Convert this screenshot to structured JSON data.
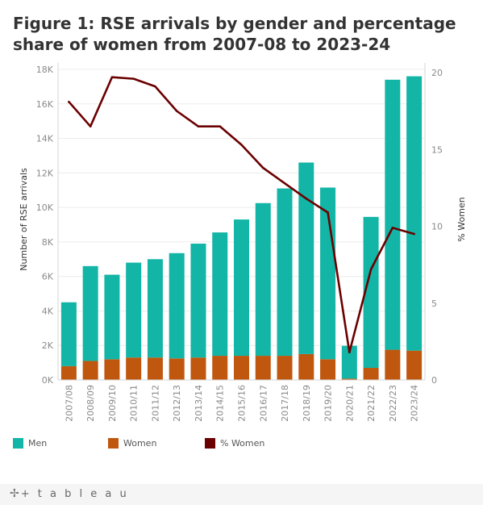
{
  "title": "Figure 1: RSE arrivals by gender and percentage share of women from 2007-08 to 2023-24",
  "legend": {
    "men": "Men",
    "women": "Women",
    "pct_women": "% Women"
  },
  "footer": {
    "logo_mark": "✢",
    "logo_text": "+ t a b l e a u"
  },
  "colors": {
    "men": "#12b5a6",
    "women": "#c0570f",
    "pct_women": "#6b0000",
    "gridline": "#ececec",
    "footer_bg": "#f5f5f5"
  },
  "chart_data": {
    "type": "bar",
    "stacked": true,
    "categories": [
      "2007/08",
      "2008/09",
      "2009/10",
      "2010/11",
      "2011/12",
      "2012/13",
      "2013/14",
      "2014/15",
      "2015/16",
      "2016/17",
      "2017/18",
      "2018/19",
      "2019/20",
      "2020/21",
      "2021/22",
      "2022/23",
      "2023/24"
    ],
    "series": [
      {
        "name": "Women",
        "axis": "left",
        "values": [
          800,
          1100,
          1200,
          1300,
          1300,
          1250,
          1300,
          1400,
          1400,
          1400,
          1400,
          1500,
          1200,
          80,
          700,
          1750,
          1700
        ]
      },
      {
        "name": "Men",
        "axis": "left",
        "values": [
          3700,
          5500,
          4900,
          5500,
          5700,
          6100,
          6600,
          7150,
          7900,
          8850,
          9700,
          11100,
          9950,
          1900,
          8750,
          15650,
          15900
        ]
      },
      {
        "name": "% Women",
        "type": "line",
        "axis": "right",
        "values": [
          18.1,
          16.5,
          19.7,
          19.6,
          19.1,
          17.5,
          16.5,
          16.5,
          15.3,
          13.8,
          12.8,
          11.8,
          10.9,
          1.8,
          7.2,
          9.9,
          9.5
        ]
      }
    ],
    "ylabel": "Number of RSE arrivals",
    "y2label": "% Women",
    "ylim": [
      0,
      18000
    ],
    "y2lim": [
      0,
      20
    ],
    "yticks": [
      "0K",
      "2K",
      "4K",
      "6K",
      "8K",
      "10K",
      "12K",
      "14K",
      "16K",
      "18K"
    ],
    "y2ticks": [
      "0",
      "5",
      "10",
      "15",
      "20"
    ],
    "grid": true,
    "legend_position": "bottom"
  }
}
